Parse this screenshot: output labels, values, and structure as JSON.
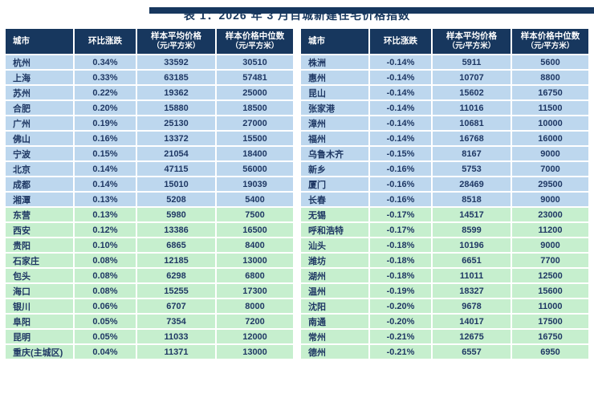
{
  "page": {
    "title": "表 1：2026 年 3 月百城新建住宅价格指数"
  },
  "colors": {
    "page_bg": "#FFFFFF",
    "top_bar": "#17375E",
    "header_bg": "#17375E",
    "header_text": "#FFFFFF",
    "row_blue": "#BDD7EE",
    "row_green": "#C6EFCE",
    "text": "#1F3864"
  },
  "columns": [
    {
      "key": "city",
      "line1": "城市",
      "line2": ""
    },
    {
      "key": "change",
      "line1": "环比涨跌",
      "line2": ""
    },
    {
      "key": "avg",
      "line1": "样本平均价格",
      "line2": "（元/平方米）"
    },
    {
      "key": "median",
      "line1": "样本价格中位数",
      "line2": "（元/平方米）"
    }
  ],
  "tables": [
    {
      "rows": [
        {
          "city": "杭州",
          "change": "0.34%",
          "avg": "33592",
          "median": "30510",
          "band": "blue"
        },
        {
          "city": "上海",
          "change": "0.33%",
          "avg": "63185",
          "median": "57481",
          "band": "blue"
        },
        {
          "city": "苏州",
          "change": "0.22%",
          "avg": "19362",
          "median": "25000",
          "band": "blue"
        },
        {
          "city": "合肥",
          "change": "0.20%",
          "avg": "15880",
          "median": "18500",
          "band": "blue"
        },
        {
          "city": "广州",
          "change": "0.19%",
          "avg": "25130",
          "median": "27000",
          "band": "blue"
        },
        {
          "city": "佛山",
          "change": "0.16%",
          "avg": "13372",
          "median": "15500",
          "band": "blue"
        },
        {
          "city": "宁波",
          "change": "0.15%",
          "avg": "21054",
          "median": "18400",
          "band": "blue"
        },
        {
          "city": "北京",
          "change": "0.14%",
          "avg": "47115",
          "median": "56000",
          "band": "blue"
        },
        {
          "city": "成都",
          "change": "0.14%",
          "avg": "15010",
          "median": "19039",
          "band": "blue"
        },
        {
          "city": "湘潭",
          "change": "0.13%",
          "avg": "5208",
          "median": "5400",
          "band": "blue"
        },
        {
          "city": "东营",
          "change": "0.13%",
          "avg": "5980",
          "median": "7500",
          "band": "green"
        },
        {
          "city": "西安",
          "change": "0.12%",
          "avg": "13386",
          "median": "16500",
          "band": "green"
        },
        {
          "city": "贵阳",
          "change": "0.10%",
          "avg": "6865",
          "median": "8400",
          "band": "green"
        },
        {
          "city": "石家庄",
          "change": "0.08%",
          "avg": "12185",
          "median": "13000",
          "band": "green"
        },
        {
          "city": "包头",
          "change": "0.08%",
          "avg": "6298",
          "median": "6800",
          "band": "green"
        },
        {
          "city": "海口",
          "change": "0.08%",
          "avg": "15255",
          "median": "17300",
          "band": "green"
        },
        {
          "city": "银川",
          "change": "0.06%",
          "avg": "6707",
          "median": "8000",
          "band": "green"
        },
        {
          "city": "阜阳",
          "change": "0.05%",
          "avg": "7354",
          "median": "7200",
          "band": "green"
        },
        {
          "city": "昆明",
          "change": "0.05%",
          "avg": "11033",
          "median": "12000",
          "band": "green"
        },
        {
          "city": "重庆(主城区)",
          "change": "0.04%",
          "avg": "11371",
          "median": "13000",
          "band": "green"
        }
      ]
    },
    {
      "rows": [
        {
          "city": "株洲",
          "change": "-0.14%",
          "avg": "5911",
          "median": "5600",
          "band": "blue"
        },
        {
          "city": "惠州",
          "change": "-0.14%",
          "avg": "10707",
          "median": "8800",
          "band": "blue"
        },
        {
          "city": "昆山",
          "change": "-0.14%",
          "avg": "15602",
          "median": "16750",
          "band": "blue"
        },
        {
          "city": "张家港",
          "change": "-0.14%",
          "avg": "11016",
          "median": "11500",
          "band": "blue"
        },
        {
          "city": "漳州",
          "change": "-0.14%",
          "avg": "10681",
          "median": "10000",
          "band": "blue"
        },
        {
          "city": "福州",
          "change": "-0.14%",
          "avg": "16768",
          "median": "16000",
          "band": "blue"
        },
        {
          "city": "乌鲁木齐",
          "change": "-0.15%",
          "avg": "8167",
          "median": "9000",
          "band": "blue"
        },
        {
          "city": "新乡",
          "change": "-0.16%",
          "avg": "5753",
          "median": "7000",
          "band": "blue"
        },
        {
          "city": "厦门",
          "change": "-0.16%",
          "avg": "28469",
          "median": "29500",
          "band": "blue"
        },
        {
          "city": "长春",
          "change": "-0.16%",
          "avg": "8518",
          "median": "9000",
          "band": "blue"
        },
        {
          "city": "无锡",
          "change": "-0.17%",
          "avg": "14517",
          "median": "23000",
          "band": "green"
        },
        {
          "city": "呼和浩特",
          "change": "-0.17%",
          "avg": "8599",
          "median": "11200",
          "band": "green"
        },
        {
          "city": "汕头",
          "change": "-0.18%",
          "avg": "10196",
          "median": "9000",
          "band": "green"
        },
        {
          "city": "潍坊",
          "change": "-0.18%",
          "avg": "6651",
          "median": "7700",
          "band": "green"
        },
        {
          "city": "湖州",
          "change": "-0.18%",
          "avg": "11011",
          "median": "12500",
          "band": "green"
        },
        {
          "city": "温州",
          "change": "-0.19%",
          "avg": "18327",
          "median": "15600",
          "band": "green"
        },
        {
          "city": "沈阳",
          "change": "-0.20%",
          "avg": "9678",
          "median": "11000",
          "band": "green"
        },
        {
          "city": "南通",
          "change": "-0.20%",
          "avg": "14017",
          "median": "17500",
          "band": "green"
        },
        {
          "city": "常州",
          "change": "-0.21%",
          "avg": "12675",
          "median": "16750",
          "band": "green"
        },
        {
          "city": "德州",
          "change": "-0.21%",
          "avg": "6557",
          "median": "6950",
          "band": "green"
        }
      ]
    }
  ]
}
